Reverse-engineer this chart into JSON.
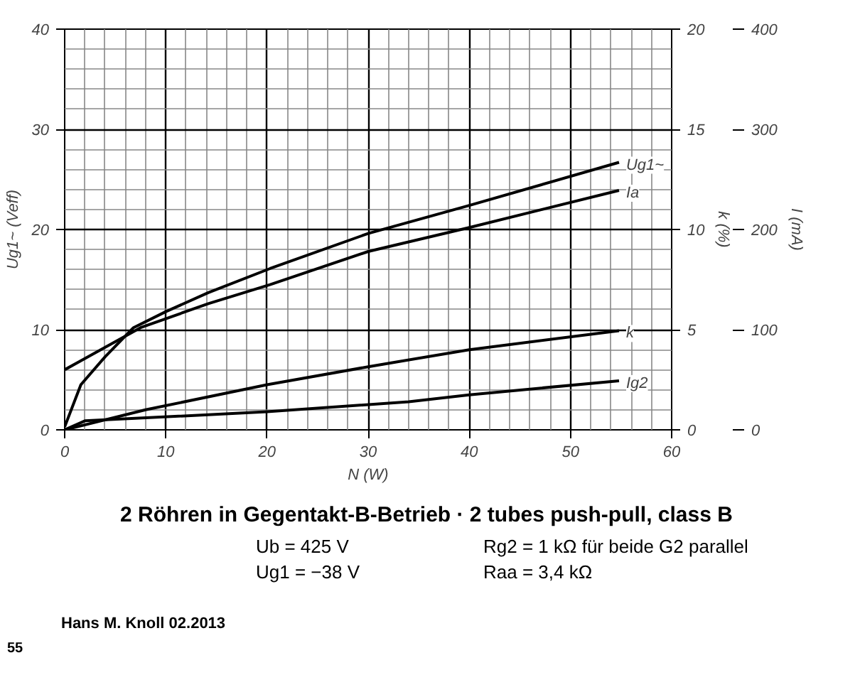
{
  "chart_data": {
    "type": "line",
    "title": "2 Röhren in Gegentakt-B-Betrieb · 2 tubes push-pull, class B",
    "xlabel": "N (W)",
    "ylabel": "Ug1~ (Veff)",
    "y2label": "k (%)",
    "y3label": "I (mA)",
    "xlim": [
      0,
      60
    ],
    "xticks": [
      0,
      10,
      20,
      30,
      40,
      50,
      60
    ],
    "ylim": [
      0,
      40
    ],
    "yticks": [
      0,
      10,
      20,
      30,
      40
    ],
    "y2lim": [
      0,
      20
    ],
    "y2ticks": [
      0,
      5,
      10,
      15,
      20
    ],
    "y3lim": [
      0,
      400
    ],
    "y3ticks": [
      0,
      100,
      200,
      300,
      400
    ],
    "grid": true,
    "legend": "right",
    "marker": "none",
    "line_style": "solid",
    "series": [
      {
        "name": "Ug1~",
        "color": "#000000",
        "x": [
          0,
          1.6,
          4,
          6.8,
          10,
          14.2,
          20.3,
          30,
          40,
          54.8
        ],
        "values": [
          0.3,
          4.5,
          7.3,
          10.2,
          11.8,
          13.7,
          16.1,
          19.6,
          22.4,
          26.7
        ]
      },
      {
        "name": "Ia",
        "color": "#000000",
        "axis": "y3",
        "x": [
          0,
          7.5,
          14.2,
          20.3,
          30,
          40,
          54.8
        ],
        "values": [
          60,
          102,
          126,
          145,
          178,
          202,
          239
        ]
      },
      {
        "name": "k",
        "color": "#000000",
        "axis": "y2",
        "x": [
          0,
          8,
          20,
          30,
          40,
          54.8
        ],
        "values": [
          0,
          1.0,
          2.25,
          3.15,
          4.0,
          4.95
        ]
      },
      {
        "name": "Ig2",
        "color": "#000000",
        "axis": "y3",
        "x": [
          0,
          2,
          20,
          34,
          40,
          54.8
        ],
        "values": [
          0,
          9,
          18,
          28,
          35,
          49
        ]
      }
    ],
    "annotations": [
      "Ub = 425 V",
      "Ug1 = −38 V",
      "Rg2 = 1 kΩ für beide G2 parallel",
      "Raa = 3,4 kΩ",
      "Hans M. Knoll 02.2013",
      "55"
    ]
  }
}
